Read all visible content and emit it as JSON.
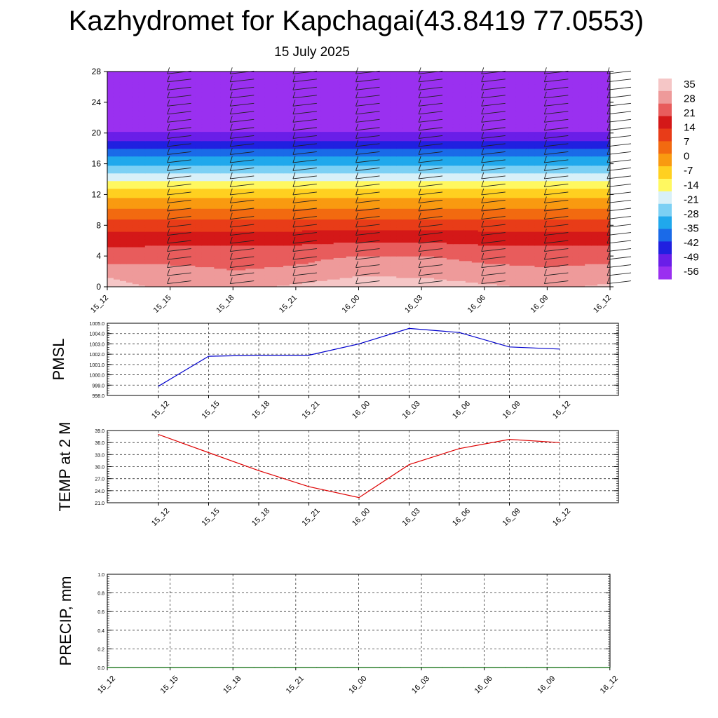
{
  "title": "Kazhydromet for Kapchagai(43.8419 77.0553)",
  "subtitle": "15 July 2025",
  "chart_data": [
    {
      "type": "heatmap",
      "panel": "vertical-profile",
      "x_tick_labels": [
        "15_12",
        "15_15",
        "15_18",
        "15_21",
        "16_00",
        "16_03",
        "16_06",
        "16_09",
        "16_12"
      ],
      "yticks": [
        0,
        4,
        8,
        12,
        16,
        20,
        24,
        28
      ],
      "ylim": [
        0,
        28
      ],
      "colorbar": {
        "labels": [
          "35",
          "28",
          "21",
          "14",
          "7",
          "0",
          "-7",
          "-14",
          "-21",
          "-28",
          "-35",
          "-42",
          "-49",
          "-56"
        ],
        "colors": [
          "#f5c6c6",
          "#ee9a9a",
          "#e85c5c",
          "#d41818",
          "#e83c18",
          "#f26a10",
          "#f99a10",
          "#ffd020",
          "#fff860",
          "#d8f0f8",
          "#7cd0f4",
          "#20a8ec",
          "#1a6ae8",
          "#2020e0",
          "#6a1ee8",
          "#9a30f0"
        ]
      },
      "temperature_rows": [
        {
          "level": 0,
          "values": [
            35,
            30,
            30,
            33,
            36,
            35,
            33,
            31,
            33
          ]
        },
        {
          "level": 2,
          "values": [
            30,
            28,
            26,
            27,
            30,
            30,
            28,
            27,
            28
          ]
        },
        {
          "level": 4,
          "values": [
            22,
            23,
            23,
            24,
            26,
            26,
            24,
            23,
            24
          ]
        },
        {
          "level": 6,
          "values": [
            18,
            18,
            18,
            18,
            19,
            19,
            18,
            18,
            18
          ]
        },
        {
          "level": 8,
          "values": [
            11,
            11,
            11,
            11,
            11,
            11,
            11,
            11,
            11
          ]
        },
        {
          "level": 10,
          "values": [
            2,
            2,
            2,
            2,
            2,
            2,
            2,
            2,
            2
          ]
        },
        {
          "level": 12,
          "values": [
            -7,
            -7,
            -7,
            -7,
            -7,
            -7,
            -7,
            -7,
            -7
          ]
        },
        {
          "level": 13,
          "values": [
            -12,
            -12,
            -12,
            -12,
            -12,
            -12,
            -12,
            -12,
            -12
          ]
        },
        {
          "level": 14,
          "values": [
            -18,
            -18,
            -18,
            -18,
            -18,
            -18,
            -18,
            -18,
            -18
          ]
        },
        {
          "level": 16,
          "values": [
            -30,
            -30,
            -30,
            -30,
            -30,
            -30,
            -30,
            -30,
            -30
          ]
        },
        {
          "level": 18,
          "values": [
            -42,
            -42,
            -42,
            -42,
            -42,
            -42,
            -42,
            -42,
            -42
          ]
        },
        {
          "level": 20,
          "values": [
            -53,
            -53,
            -53,
            -53,
            -53,
            -53,
            -53,
            -53,
            -53
          ]
        },
        {
          "level": 21,
          "values": [
            -57,
            -57,
            -57,
            -57,
            -57,
            -57,
            -57,
            -57,
            -57
          ]
        },
        {
          "level": 23,
          "values": [
            -60,
            -60,
            -60,
            -60,
            -60,
            -60,
            -60,
            -60,
            -60
          ]
        },
        {
          "level": 28,
          "values": [
            -60,
            -60,
            -60,
            -60,
            -60,
            -60,
            -60,
            -60,
            -60
          ]
        }
      ]
    },
    {
      "type": "line",
      "panel": "pmsl",
      "ylabel": "PMSL",
      "x_tick_labels": [
        "15_12",
        "15_15",
        "15_18",
        "15_21",
        "16_00",
        "16_03",
        "16_06",
        "16_09",
        "16_12"
      ],
      "ylim": [
        998.0,
        1005.0
      ],
      "ytick_labels": [
        "998.0",
        "999.0",
        "1000.0",
        "1001.0",
        "1002.0",
        "1003.0",
        "1004.0",
        "1005.0"
      ],
      "series": [
        {
          "color": "#0000cc",
          "values": [
            998.9,
            1001.8,
            1001.9,
            1001.9,
            1003.0,
            1004.5,
            1004.1,
            1002.7,
            1002.5
          ]
        }
      ]
    },
    {
      "type": "line",
      "panel": "temp2m",
      "ylabel": "TEMP at 2 M",
      "x_tick_labels": [
        "15_12",
        "15_15",
        "15_18",
        "15_21",
        "16_00",
        "16_03",
        "16_06",
        "16_09",
        "16_12"
      ],
      "ylim": [
        21.0,
        39.0
      ],
      "ytick_labels": [
        "21.0",
        "24.0",
        "27.0",
        "30.0",
        "33.0",
        "36.0",
        "39.0"
      ],
      "series": [
        {
          "color": "#dd0000",
          "values": [
            38.0,
            33.5,
            29.0,
            25.0,
            22.3,
            30.5,
            34.5,
            36.8,
            36.0
          ]
        }
      ]
    },
    {
      "type": "line",
      "panel": "precip",
      "ylabel": "PRECIP, mm",
      "x_tick_labels": [
        "15_12",
        "15_15",
        "15_18",
        "15_21",
        "16_00",
        "16_03",
        "16_06",
        "16_09",
        "16_12"
      ],
      "ylim": [
        0.0,
        1.0
      ],
      "ytick_labels": [
        "0.0",
        "0.2",
        "0.4",
        "0.6",
        "0.8",
        "1.0"
      ],
      "series": [
        {
          "color": "#006600",
          "values": [
            0,
            0,
            0,
            0,
            0,
            0,
            0,
            0,
            0,
            0,
            0,
            0,
            0,
            0,
            0,
            0,
            0,
            0,
            0,
            0,
            0,
            0,
            0,
            0,
            0
          ]
        }
      ]
    }
  ]
}
